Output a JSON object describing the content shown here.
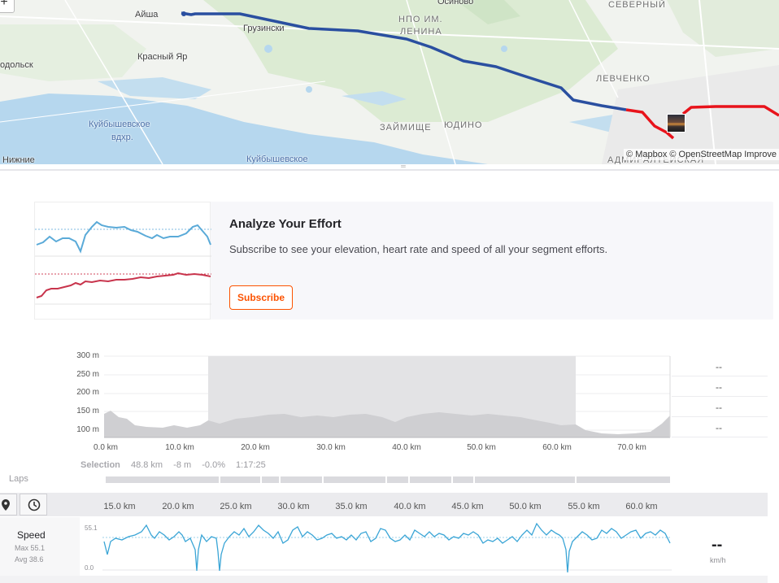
{
  "map": {
    "zoom_in_label": "+",
    "attribution": "© Mapbox © OpenStreetMap Improve",
    "labels": [
      {
        "text": "Айша",
        "kind": "place"
      },
      {
        "text": "Грузински",
        "kind": "place"
      },
      {
        "text": "Осиново",
        "kind": "place"
      },
      {
        "text": "НПО ИМ.",
        "kind": "district"
      },
      {
        "text": "ЛЕНИНА",
        "kind": "district"
      },
      {
        "text": "СЕВЕРНЫЙ",
        "kind": "district"
      },
      {
        "text": "одольск",
        "kind": "place"
      },
      {
        "text": "Красный Яр",
        "kind": "place"
      },
      {
        "text": "ЛЕВЧЕНКО",
        "kind": "district"
      },
      {
        "text": "Куйбышевское",
        "kind": "water"
      },
      {
        "text": "вдхр.",
        "kind": "water"
      },
      {
        "text": "ЗАЙМИЩЕ",
        "kind": "district"
      },
      {
        "text": "ЮДИНО",
        "kind": "district"
      },
      {
        "text": "Нижние",
        "kind": "place"
      },
      {
        "text": "Куйбышевское",
        "kind": "water"
      },
      {
        "text": "АДМИРАЛТЕЙСКАЯ",
        "kind": "district"
      }
    ],
    "route_color": "#2a4fa0",
    "segment_color": "#e8131b"
  },
  "upsell": {
    "title": "Analyze Your Effort",
    "text": "Subscribe to see your elevation, heart rate and speed of all your segment efforts.",
    "button": "Subscribe"
  },
  "elevation": {
    "y_ticks": [
      "300 m",
      "250 m",
      "200 m",
      "150 m",
      "100 m"
    ],
    "x_ticks": [
      "0.0 km",
      "10.0 km",
      "20.0 km",
      "30.0 km",
      "40.0 km",
      "50.0 km",
      "60.0 km",
      "70.0 km"
    ],
    "selection": {
      "label": "Selection",
      "distance": "48.8 km",
      "elev": "-8 m",
      "grade": "-0.0%",
      "time": "1:17:25"
    },
    "side_values": [
      "--",
      "--",
      "--",
      "--"
    ]
  },
  "laps": {
    "label": "Laps"
  },
  "speed": {
    "x_ticks": [
      "15.0 km",
      "20.0 km",
      "25.0 km",
      "30.0 km",
      "35.0 km",
      "40.0 km",
      "45.0 km",
      "50.0 km",
      "55.0 km",
      "60.0 km"
    ],
    "title": "Speed",
    "max": "Max 55.1",
    "avg": "Avg 38.6",
    "y_top": "55.1",
    "y_bottom": "0.0",
    "value": "--",
    "unit": "km/h",
    "line_color": "#3aa5d6"
  },
  "toolbar": {
    "marker_icon": "map-pin-icon",
    "clock_icon": "clock-icon"
  }
}
